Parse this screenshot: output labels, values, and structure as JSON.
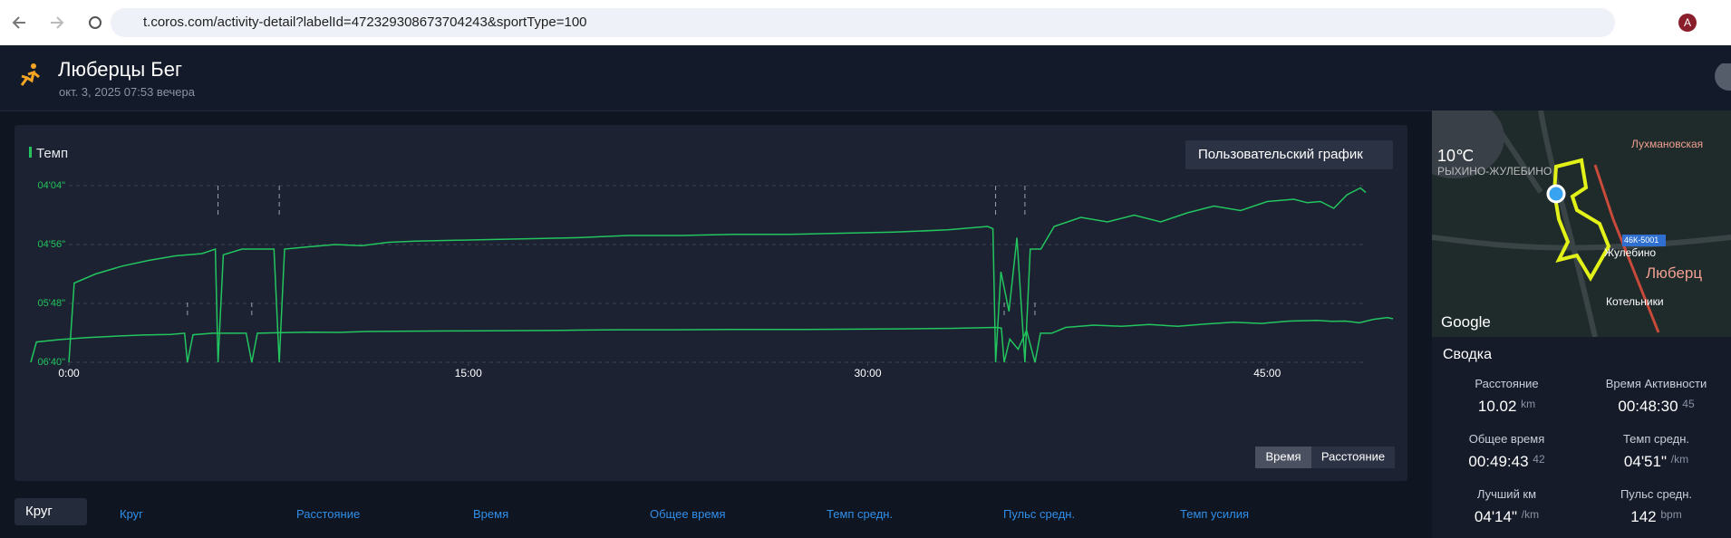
{
  "browser": {
    "url": "t.coros.com/activity-detail?labelId=472329308673704243&sportType=100",
    "profile": "A"
  },
  "header": {
    "title": "Люберцы Бег",
    "date": "окт. 3, 2025 07:53 вечера"
  },
  "chart_data": {
    "type": "line",
    "dropdown": "Пользовательский график",
    "x": [
      0,
      0.2,
      1,
      2,
      3,
      4,
      5,
      5.5,
      5.6,
      5.8,
      6.5,
      7.7,
      7.9,
      8.1,
      9,
      10,
      11,
      12,
      13,
      15,
      17,
      19,
      21,
      23,
      25,
      27,
      29,
      31,
      33,
      34.5,
      34.7,
      34.8,
      35,
      35.3,
      35.6,
      35.9,
      36.1,
      36.5,
      37,
      38,
      39,
      40,
      41,
      42,
      43,
      44,
      45,
      46,
      46.5,
      47,
      47.5,
      48,
      48.5,
      48.7
    ],
    "series": [
      {
        "name": "Темп",
        "color": "#22c55e",
        "values": [
          400,
          330,
          322,
          315,
          310,
          306,
          304,
          300,
          400,
          305,
          300,
          300,
          400,
          300,
          298,
          296,
          297,
          294,
          293,
          292,
          291,
          290,
          288,
          288,
          287,
          287,
          286,
          285,
          283,
          280,
          282,
          400,
          320,
          355,
          290,
          400,
          300,
          300,
          280,
          272,
          276,
          270,
          276,
          268,
          262,
          266,
          258,
          256,
          259,
          258,
          264,
          252,
          246,
          250
        ]
      }
    ],
    "xlim": [
      0,
      48.7
    ],
    "xticks": [
      {
        "value": 0,
        "label": "0:00"
      },
      {
        "value": 15,
        "label": "15:00"
      },
      {
        "value": 30,
        "label": "30:00"
      },
      {
        "value": 45,
        "label": "45:00"
      }
    ],
    "ylim": [
      400,
      244
    ],
    "yticks": [
      {
        "value": 244,
        "label": "04'04\""
      },
      {
        "value": 296,
        "label": "04'56\""
      },
      {
        "value": 348,
        "label": "05'48\""
      },
      {
        "value": 400,
        "label": "06'40\""
      }
    ],
    "grid": true,
    "pause_markers": [
      5.6,
      7.9,
      34.8,
      35.9
    ],
    "axis_toggle": [
      "Время",
      "Расстояние"
    ]
  },
  "map": {
    "temperature": "10℃",
    "labels": [
      "Лухмановская",
      "РЫХИНО-ЖУЛЕБИНО",
      "46К-5001",
      "Жулебино",
      "Люберц",
      "Котельники"
    ],
    "attribution": "Google"
  },
  "summary": {
    "title": "Сводка",
    "items": [
      {
        "label": "Расстояние",
        "value": "10.02",
        "unit": "km"
      },
      {
        "label": "Время Активности",
        "value": "00:48:30",
        "unit": "45"
      },
      {
        "label": "Общее время",
        "value": "00:49:43",
        "unit": "42"
      },
      {
        "label": "Темп средн.",
        "value": "04'51\"",
        "unit": "/km"
      },
      {
        "label": "Лучший км",
        "value": "04'14\"",
        "unit": "/km"
      },
      {
        "label": "Пульс средн.",
        "value": "142",
        "unit": "bpm"
      }
    ]
  },
  "laps": {
    "selector": "Круг",
    "columns": [
      "Круг",
      "Расстояние",
      "Время",
      "Общее время",
      "Темп средн.",
      "Пульс средн.",
      "Темп усилия"
    ]
  }
}
